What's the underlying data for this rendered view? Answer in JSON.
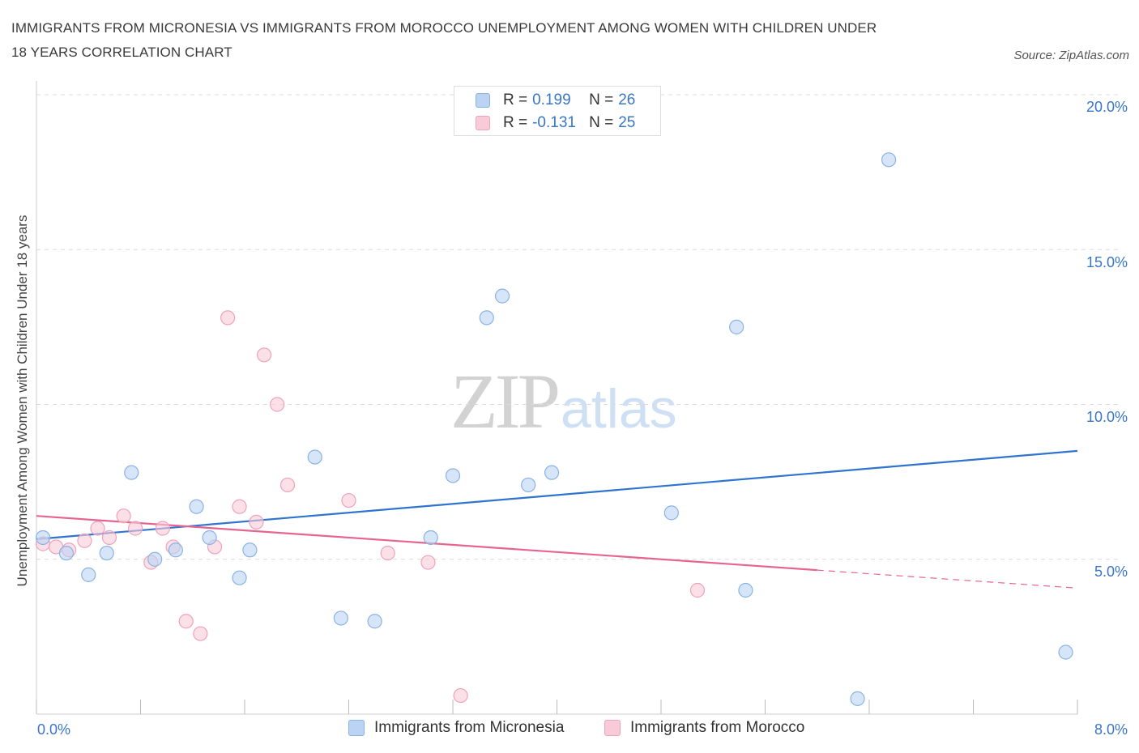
{
  "header": {
    "title_line1": "IMMIGRANTS FROM MICRONESIA VS IMMIGRANTS FROM MOROCCO UNEMPLOYMENT AMONG WOMEN WITH CHILDREN UNDER",
    "title_line2": "18 YEARS CORRELATION CHART",
    "source": "Source: ZipAtlas.com"
  },
  "watermark": {
    "zip": "ZIP",
    "atlas": "atlas"
  },
  "colors": {
    "micronesia_fill": "#bcd4f4",
    "micronesia_stroke": "#8ab3e3",
    "micronesia_line": "#2f74cf",
    "morocco_fill": "#f9cbd9",
    "morocco_stroke": "#eda3bb",
    "morocco_line": "#e56590",
    "tick_text": "#3a76c8"
  },
  "legend": {
    "rows": [
      {
        "r_label": "R =",
        "r_value": "0.199",
        "n_label": "N =",
        "n_value": "26"
      },
      {
        "r_label": "R =",
        "r_value": "-0.131",
        "n_label": "N =",
        "n_value": "25"
      }
    ]
  },
  "chart_data": {
    "type": "scatter",
    "title": "IMMIGRANTS FROM MICRONESIA VS IMMIGRANTS FROM MOROCCO UNEMPLOYMENT AMONG WOMEN WITH CHILDREN UNDER 18 YEARS CORRELATION CHART",
    "xlabel": "",
    "ylabel": "Unemployment Among Women with Children Under 18 years",
    "xlim": [
      0,
      8
    ],
    "ylim": [
      0,
      20.5
    ],
    "x_tick_labels": [
      "0.0%",
      "8.0%"
    ],
    "y_ticks": [
      5,
      10,
      15,
      20
    ],
    "y_tick_labels": [
      "5.0%",
      "10.0%",
      "15.0%",
      "20.0%"
    ],
    "grid": "horizontal dashed",
    "legend_placement": "top-center",
    "series": [
      {
        "name": "Immigrants from Micronesia",
        "points": [
          [
            0.05,
            5.7
          ],
          [
            0.23,
            5.2
          ],
          [
            0.4,
            4.5
          ],
          [
            0.54,
            5.2
          ],
          [
            0.73,
            7.8
          ],
          [
            0.91,
            5.0
          ],
          [
            1.07,
            5.3
          ],
          [
            1.23,
            6.7
          ],
          [
            1.33,
            5.7
          ],
          [
            1.56,
            4.4
          ],
          [
            1.64,
            5.3
          ],
          [
            2.14,
            8.3
          ],
          [
            2.34,
            3.1
          ],
          [
            2.6,
            3.0
          ],
          [
            3.03,
            5.7
          ],
          [
            3.2,
            7.7
          ],
          [
            3.46,
            12.8
          ],
          [
            3.58,
            13.5
          ],
          [
            3.78,
            7.4
          ],
          [
            3.96,
            7.8
          ],
          [
            4.88,
            6.5
          ],
          [
            5.38,
            12.5
          ],
          [
            5.45,
            4.0
          ],
          [
            6.31,
            0.5
          ],
          [
            6.55,
            17.9
          ],
          [
            7.91,
            2.0
          ]
        ],
        "trend": {
          "x": [
            0.0,
            8.0
          ],
          "y": [
            5.65,
            8.5
          ]
        }
      },
      {
        "name": "Immigrants from Morocco",
        "points": [
          [
            0.05,
            5.5
          ],
          [
            0.15,
            5.4
          ],
          [
            0.25,
            5.3
          ],
          [
            0.37,
            5.6
          ],
          [
            0.47,
            6.0
          ],
          [
            0.56,
            5.7
          ],
          [
            0.67,
            6.4
          ],
          [
            0.76,
            6.0
          ],
          [
            0.88,
            4.9
          ],
          [
            0.97,
            6.0
          ],
          [
            1.05,
            5.4
          ],
          [
            1.15,
            3.0
          ],
          [
            1.26,
            2.6
          ],
          [
            1.37,
            5.4
          ],
          [
            1.47,
            12.8
          ],
          [
            1.56,
            6.7
          ],
          [
            1.69,
            6.2
          ],
          [
            1.75,
            11.6
          ],
          [
            1.85,
            10.0
          ],
          [
            1.93,
            7.4
          ],
          [
            2.4,
            6.9
          ],
          [
            2.7,
            5.2
          ],
          [
            3.01,
            4.9
          ],
          [
            3.26,
            0.6
          ],
          [
            5.08,
            4.0
          ]
        ],
        "trend": {
          "x": [
            0.0,
            6.0
          ],
          "y": [
            6.4,
            4.65
          ]
        },
        "trend_dashed": {
          "x": [
            6.0,
            8.0
          ],
          "y": [
            4.65,
            4.07
          ]
        }
      }
    ]
  },
  "bottom_legend": {
    "micronesia": "Immigrants from Micronesia",
    "morocco": "Immigrants from Morocco"
  }
}
